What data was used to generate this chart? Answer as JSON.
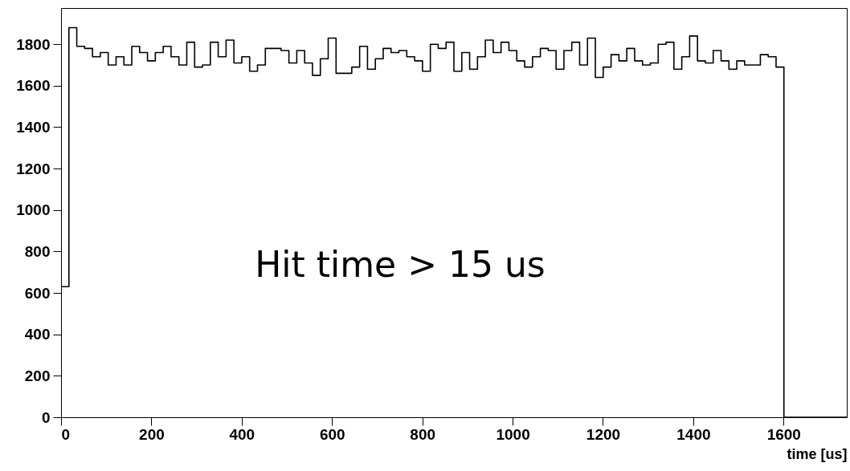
{
  "chart_data": {
    "type": "histogram",
    "xlabel": "time [us]",
    "annotations": [
      "Hit time > 15 us"
    ],
    "bins": [
      0,
      17.4,
      34.8,
      52.2,
      69.6,
      87,
      104.4,
      121.8,
      139.2,
      156.6,
      174,
      191.4,
      208.8,
      226.2,
      243.6,
      261,
      278.4,
      295.8,
      313.2,
      330.6,
      348,
      365.4,
      382.8,
      400.2,
      417.6,
      435,
      452.4,
      469.8,
      487.2,
      504.6,
      522,
      539.4,
      556.8,
      574.2,
      591.6,
      609,
      626.4,
      643.8,
      661.2,
      678.6,
      696,
      713.4,
      730.8,
      748.2,
      765.6,
      783,
      800.4,
      817.8,
      835.2,
      852.6,
      870,
      887.4,
      904.8,
      922.2,
      939.6,
      957,
      974.4,
      991.8,
      1009.2,
      1026.6,
      1044,
      1061.4,
      1078.8,
      1096.2,
      1113.6,
      1131,
      1148.4,
      1165.8,
      1183.2,
      1200.6,
      1218,
      1235.4,
      1252.8,
      1270.2,
      1287.6,
      1305,
      1322.4,
      1339.8,
      1357.2,
      1374.6,
      1392,
      1409.4,
      1426.8,
      1444.2,
      1461.6,
      1479,
      1496.4,
      1513.8,
      1531.2,
      1548.6,
      1566,
      1583.4,
      1600.8,
      1618.2,
      1635.6,
      1653,
      1670.4,
      1687.8,
      1705.2,
      1722.6,
      1740
    ],
    "values": [
      630,
      1880,
      1790,
      1780,
      1740,
      1760,
      1700,
      1740,
      1700,
      1790,
      1760,
      1720,
      1760,
      1790,
      1740,
      1700,
      1810,
      1690,
      1700,
      1810,
      1740,
      1820,
      1710,
      1740,
      1670,
      1700,
      1780,
      1780,
      1770,
      1710,
      1770,
      1710,
      1650,
      1730,
      1830,
      1660,
      1660,
      1690,
      1790,
      1680,
      1730,
      1780,
      1760,
      1770,
      1740,
      1720,
      1670,
      1800,
      1780,
      1810,
      1670,
      1760,
      1680,
      1740,
      1820,
      1760,
      1810,
      1770,
      1720,
      1690,
      1740,
      1780,
      1770,
      1680,
      1770,
      1810,
      1700,
      1830,
      1640,
      1690,
      1750,
      1720,
      1780,
      1720,
      1700,
      1710,
      1800,
      1810,
      1680,
      1740,
      1840,
      1720,
      1710,
      1770,
      1720,
      1680,
      1720,
      1700,
      1700,
      1750,
      1740,
      1690,
      0,
      0,
      0,
      0,
      0,
      0,
      0,
      0
    ],
    "xlim": [
      0,
      1740
    ],
    "ylim": [
      0,
      1975
    ],
    "xticks": [
      0,
      200,
      400,
      600,
      800,
      1000,
      1200,
      1400,
      1600
    ],
    "yticks": [
      0,
      200,
      400,
      600,
      800,
      1000,
      1200,
      1400,
      1600,
      1800
    ],
    "grid": false
  }
}
